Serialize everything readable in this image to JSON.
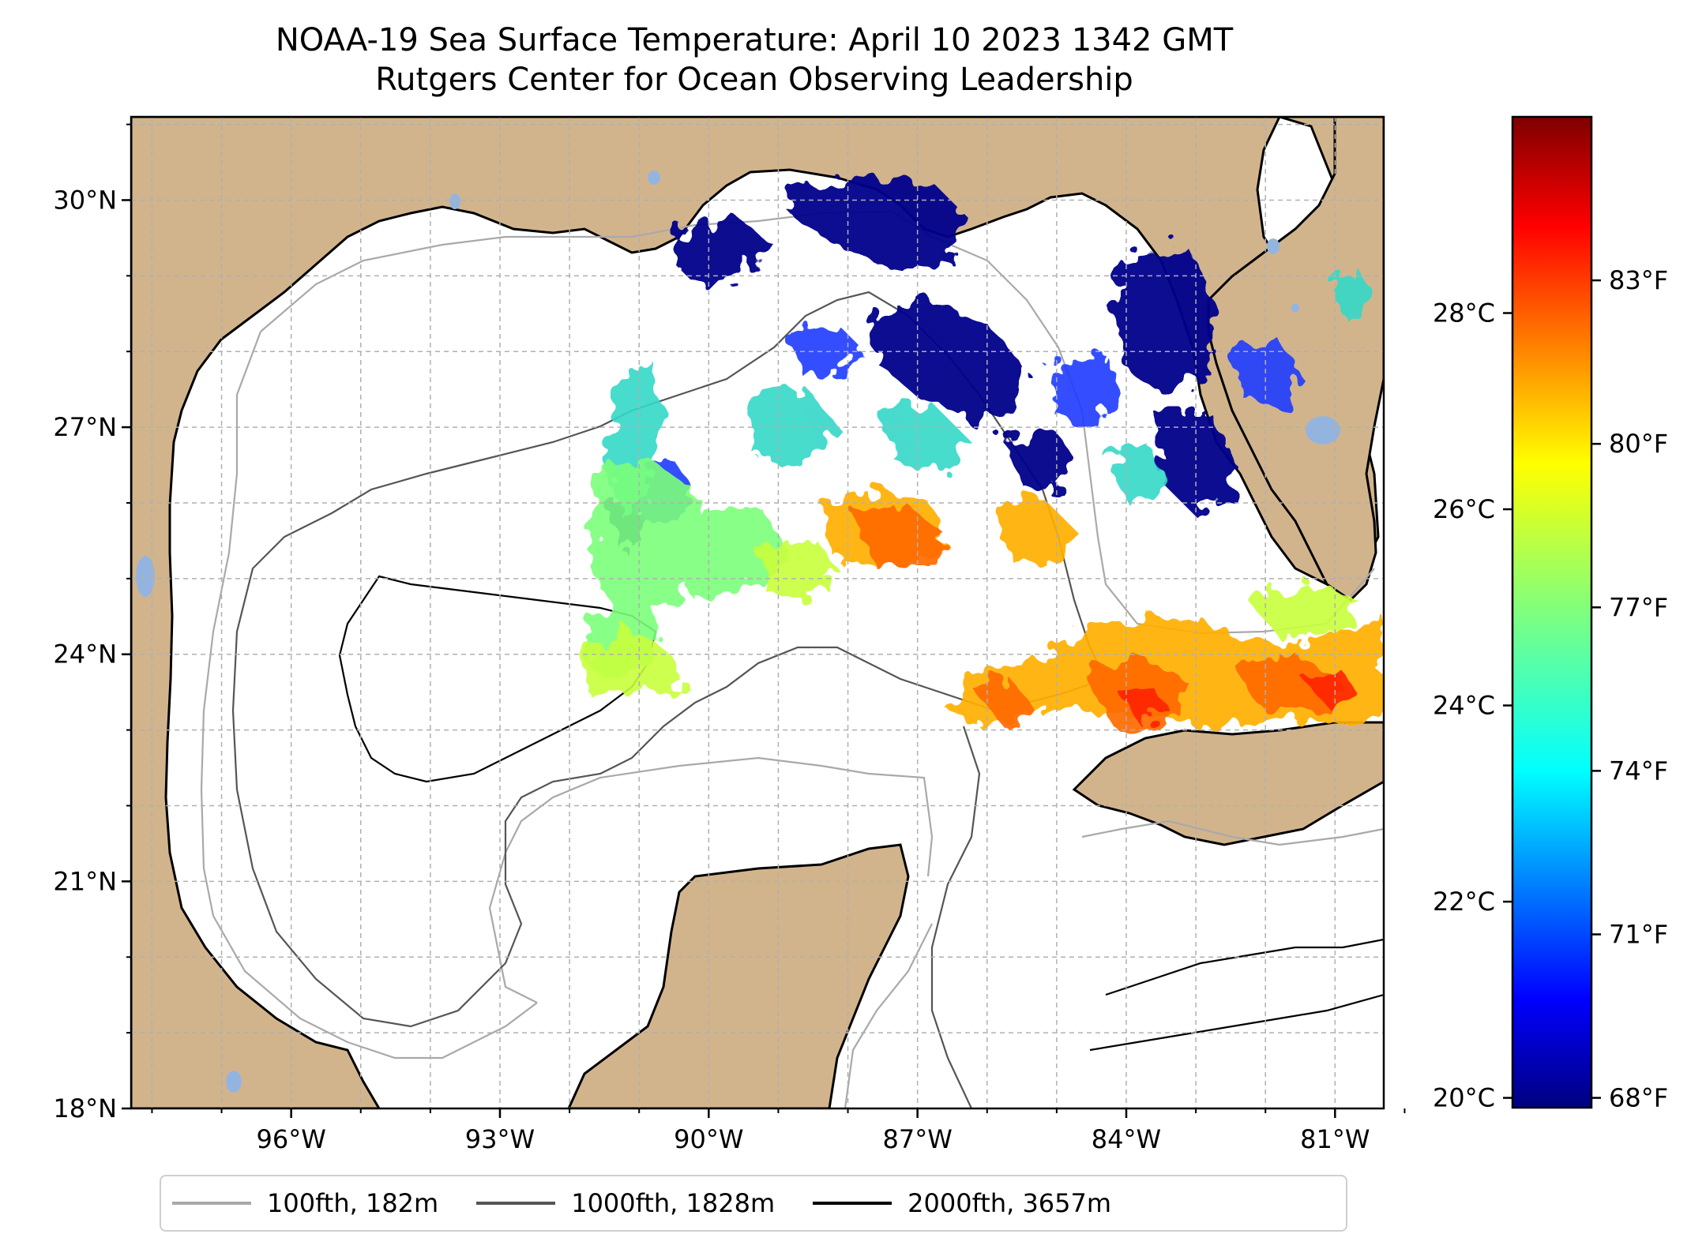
{
  "header": {
    "title_line1": "NOAA-19 Sea Surface Temperature: April 10 2023 1342 GMT",
    "title_line2": "Rutgers Center for Ocean Observing Leadership"
  },
  "map": {
    "lon_range": [
      -98.3,
      -80.3
    ],
    "lat_range": [
      18.0,
      31.1
    ],
    "lat_ticks": [
      "30°N",
      "27°N",
      "24°N",
      "21°N",
      "18°N"
    ],
    "lon_ticks": [
      "96°W",
      "93°W",
      "90°W",
      "87°W",
      "84°W",
      "81°W"
    ],
    "land_color": "#d2b48c",
    "lake_color": "#94b4e0",
    "grid": "dashed"
  },
  "colorbar": {
    "colormap": "jet",
    "celsius_ticks": [
      "28°C",
      "26°C",
      "24°C",
      "22°C",
      "20°C"
    ],
    "fahrenheit_ticks": [
      "83°F",
      "80°F",
      "77°F",
      "74°F",
      "71°F",
      "68°F"
    ],
    "range_celsius": [
      19.9,
      30.0
    ]
  },
  "legend": {
    "items": [
      {
        "label": "100fth, 182m",
        "color": "#a9a9a9"
      },
      {
        "label": "1000fth, 1828m",
        "color": "#555555"
      },
      {
        "label": "2000fth, 3657m",
        "color": "#000000"
      }
    ]
  }
}
